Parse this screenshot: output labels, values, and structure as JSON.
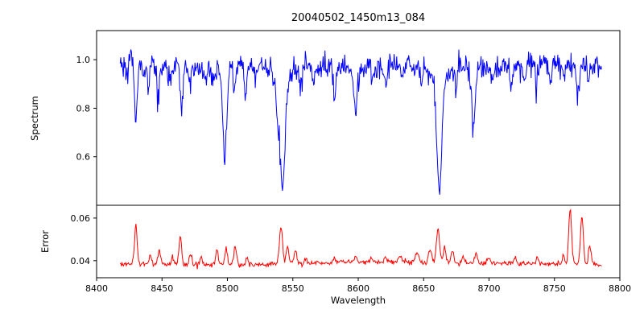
{
  "chart_data": {
    "type": "line",
    "title": "20040502_1450m13_084",
    "xlabel": "Wavelength",
    "xlim": [
      8400,
      8800
    ],
    "xticks": [
      8400,
      8450,
      8500,
      8550,
      8600,
      8650,
      8700,
      8750,
      8800
    ],
    "grid": false,
    "legend": false,
    "panels": [
      {
        "name": "spectrum",
        "ylabel": "Spectrum",
        "color": "#0000ff",
        "ylim": [
          0.4,
          1.12
        ],
        "yticks": [
          0.6,
          0.8,
          1.0
        ],
        "ytick_labels": [
          "0.6",
          "0.8",
          "1.0"
        ],
        "x_start": 8418,
        "x_end": 8786,
        "n_points": 760,
        "continuum": 0.972,
        "noise_sigma": 0.027,
        "absorption_lines": [
          [
            8423,
            0.07,
            0.9
          ],
          [
            8430,
            0.27,
            1.0
          ],
          [
            8436,
            0.06,
            0.9
          ],
          [
            8440,
            0.09,
            0.9
          ],
          [
            8447,
            0.14,
            1.0
          ],
          [
            8456,
            0.07,
            0.9
          ],
          [
            8465,
            0.16,
            1.0
          ],
          [
            8471,
            0.09,
            0.9
          ],
          [
            8483,
            0.06,
            0.9
          ],
          [
            8490,
            0.07,
            0.9
          ],
          [
            8498,
            0.37,
            1.5
          ],
          [
            8505,
            0.08,
            0.9
          ],
          [
            8514,
            0.12,
            1.0
          ],
          [
            8521,
            0.07,
            0.9
          ],
          [
            8538,
            0.09,
            1.0
          ],
          [
            8542,
            0.44,
            1.9
          ],
          [
            8542,
            0.08,
            6.0
          ],
          [
            8556,
            0.08,
            0.9
          ],
          [
            8566,
            0.06,
            0.9
          ],
          [
            8582,
            0.1,
            0.9
          ],
          [
            8598,
            0.17,
            1.1
          ],
          [
            8611,
            0.07,
            0.9
          ],
          [
            8621,
            0.1,
            0.9
          ],
          [
            8634,
            0.06,
            0.9
          ],
          [
            8648,
            0.08,
            0.9
          ],
          [
            8662,
            0.42,
            1.8
          ],
          [
            8662,
            0.08,
            5.5
          ],
          [
            8675,
            0.1,
            0.9
          ],
          [
            8688,
            0.24,
            1.2
          ],
          [
            8702,
            0.08,
            0.9
          ],
          [
            8717,
            0.11,
            1.0
          ],
          [
            8727,
            0.06,
            0.9
          ],
          [
            8736,
            0.1,
            1.0
          ],
          [
            8747,
            0.07,
            0.9
          ],
          [
            8757,
            0.07,
            0.9
          ],
          [
            8768,
            0.12,
            1.0
          ],
          [
            8776,
            0.08,
            0.9
          ]
        ]
      },
      {
        "name": "error",
        "ylabel": "Error",
        "color": "#ff0000",
        "ylim": [
          0.032,
          0.066
        ],
        "yticks": [
          0.04,
          0.06
        ],
        "ytick_labels": [
          "0.04",
          "0.06"
        ],
        "x_start": 8418,
        "x_end": 8786,
        "n_points": 700,
        "baseline": 0.0382,
        "noise_sigma": 0.0006,
        "peaks": [
          [
            8430,
            0.018,
            1.0
          ],
          [
            8441,
            0.004,
            1.0
          ],
          [
            8448,
            0.006,
            1.0
          ],
          [
            8458,
            0.0035,
            0.9
          ],
          [
            8464,
            0.013,
            1.0
          ],
          [
            8472,
            0.005,
            0.9
          ],
          [
            8480,
            0.0035,
            0.9
          ],
          [
            8492,
            0.007,
            1.0
          ],
          [
            8499,
            0.008,
            1.0
          ],
          [
            8506,
            0.009,
            1.0
          ],
          [
            8515,
            0.0035,
            0.9
          ],
          [
            8541,
            0.0175,
            1.2
          ],
          [
            8546,
            0.008,
            1.0
          ],
          [
            8552,
            0.006,
            1.0
          ],
          [
            8560,
            0.0025,
            0.9
          ],
          [
            8582,
            0.002,
            0.9
          ],
          [
            8598,
            0.0025,
            1.0
          ],
          [
            8610,
            0.002,
            1.0
          ],
          [
            8621,
            0.0025,
            1.0
          ],
          [
            8632,
            0.0025,
            1.5
          ],
          [
            8645,
            0.004,
            1.5
          ],
          [
            8655,
            0.006,
            1.2
          ],
          [
            8661,
            0.0155,
            1.2
          ],
          [
            8666,
            0.008,
            1.0
          ],
          [
            8672,
            0.0055,
            1.0
          ],
          [
            8680,
            0.003,
            1.0
          ],
          [
            8690,
            0.0045,
            1.0
          ],
          [
            8700,
            0.0025,
            1.0
          ],
          [
            8720,
            0.0025,
            1.0
          ],
          [
            8737,
            0.0025,
            1.0
          ],
          [
            8757,
            0.0035,
            1.0
          ],
          [
            8762,
            0.026,
            1.1
          ],
          [
            8771,
            0.0225,
            1.1
          ],
          [
            8777,
            0.0085,
            1.0
          ]
        ]
      }
    ]
  }
}
